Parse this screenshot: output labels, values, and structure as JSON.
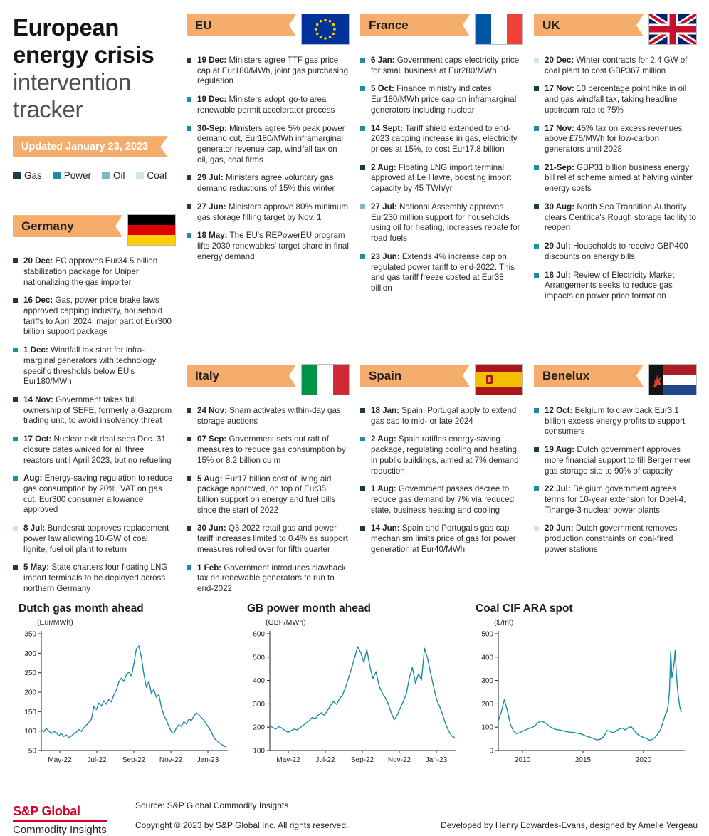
{
  "header": {
    "title_bold": "European energy crisis",
    "title_light": "intervention tracker",
    "updated": "Updated January 23, 2023",
    "legend": [
      {
        "cat": "gas",
        "label": "Gas"
      },
      {
        "cat": "power",
        "label": "Power"
      },
      {
        "cat": "oil",
        "label": "Oil"
      },
      {
        "cat": "coal",
        "label": "Coal"
      }
    ]
  },
  "colors": {
    "banner": "#F5AD6D",
    "line": "#1D8CA4",
    "categories": {
      "gas": "#1C3B4D",
      "power": "#1D8CA4",
      "oil": "#7FB6CC",
      "coal": "#CEE4EE"
    }
  },
  "sections": {
    "germany": {
      "title": "Germany",
      "flag": "germany",
      "items": [
        {
          "cat": "gas",
          "date": "20 Dec:",
          "text": "EC approves Eur34.5 billion stabilization package for Uniper nationalizing the gas importer"
        },
        {
          "cat": "gas",
          "date": "16 Dec:",
          "text": "Gas, power price brake laws approved capping industry, household tariffs to April 2024, major part of Eur300 billion support package"
        },
        {
          "cat": "power",
          "date": "1 Dec:",
          "text": "Windfall tax start for infra-marginal generators with technology specific thresholds below EU's Eur180/MWh"
        },
        {
          "cat": "gas",
          "date": "14 Nov:",
          "text": "Government takes full ownership of SEFE, formerly a Gazprom trading unit, to avoid insolvency threat"
        },
        {
          "cat": "power",
          "date": "17 Oct:",
          "text": "Nuclear exit deal sees Dec. 31 closure dates waived for all three reactors until April 2023, but no refueling"
        },
        {
          "cat": "power",
          "date": "Aug:",
          "text": "Energy-saving regulation to reduce gas consumption by 20%, VAT on gas cut, Eur300 consumer allowance approved"
        },
        {
          "cat": "coal",
          "date": "8 Jul:",
          "text": "Bundesrat approves replacement power law allowing 10-GW of coal, lignite, fuel oil plant to return"
        },
        {
          "cat": "gas",
          "date": "5 May:",
          "text": "State charters four floating LNG import terminals to be deployed across northern Germany"
        }
      ]
    },
    "eu": {
      "title": "EU",
      "flag": "eu",
      "items": [
        {
          "cat": "gas",
          "date": "19 Dec:",
          "text": "Ministers agree TTF gas price cap at Eur180/MWh, joint gas purchasing regulation"
        },
        {
          "cat": "power",
          "date": "19 Dec:",
          "text": "Ministers adopt 'go-to area' renewable permit accelerator process"
        },
        {
          "cat": "power",
          "date": "30-Sep:",
          "text": "Ministers agree 5% peak power demand cut, Eur180/MWh inframarginal generator revenue cap, windfall tax on oil, gas, coal firms"
        },
        {
          "cat": "gas",
          "date": "29 Jul:",
          "text": "Ministers agree voluntary gas demand reductions of 15% this winter"
        },
        {
          "cat": "gas",
          "date": "27 Jun:",
          "text": "Ministers approve 80% minimum gas storage filling target by Nov. 1"
        },
        {
          "cat": "power",
          "date": "18 May:",
          "text": "The EU's REPowerEU program lifts 2030 renewables' target share in final energy demand"
        }
      ]
    },
    "france": {
      "title": "France",
      "flag": "france",
      "items": [
        {
          "cat": "power",
          "date": "6 Jan:",
          "text": "Government caps electricity price for small business at Eur280/MWh"
        },
        {
          "cat": "power",
          "date": "5 Oct:",
          "text": "Finance ministry indicates Eur180/MWh price cap on inframarginal generators including nuclear"
        },
        {
          "cat": "power",
          "date": "14 Sept:",
          "text": "Tariff shield extended to end-2023 capping increase in gas, electricity prices at 15%, to cost Eur17.8 billion"
        },
        {
          "cat": "gas",
          "date": "2 Aug:",
          "text": "Floating LNG import terminal approved at Le Havre, boosting import capacity by 45 TWh/yr"
        },
        {
          "cat": "oil",
          "date": "27 Jul:",
          "text": "National Assembly approves Eur230 million support for households using oil for heating, increases rebate for road fuels"
        },
        {
          "cat": "power",
          "date": "23 Jun:",
          "text": "Extends 4% increase cap on regulated power tariff to end-2022. This and gas tariff freeze costed at Eur38 billion"
        }
      ]
    },
    "uk": {
      "title": "UK",
      "flag": "uk",
      "items": [
        {
          "cat": "coal",
          "date": "20 Dec:",
          "text": "Winter contracts for 2.4 GW of coal plant to cost GBP367 million"
        },
        {
          "cat": "gas",
          "date": "17 Nov:",
          "text": "10 percentage point hike in oil and gas windfall tax, taking headline upstream rate to 75%"
        },
        {
          "cat": "power",
          "date": "17 Nov:",
          "text": "45% tax on excess revenues above £75/MWh for low-carbon generators until 2028"
        },
        {
          "cat": "power",
          "date": "21-Sep:",
          "text": "GBP31 billion business energy bill relief scheme aimed at halving winter energy costs"
        },
        {
          "cat": "gas",
          "date": "30 Aug:",
          "text": "North Sea Transition Authority clears Centrica's Rough storage facility to reopen"
        },
        {
          "cat": "power",
          "date": "29 Jul:",
          "text": "Households to receive GBP400 discounts on energy bills"
        },
        {
          "cat": "power",
          "date": "18 Jul:",
          "text": "Review of Electricity Market Arrangements seeks to reduce gas impacts on power price formation"
        }
      ]
    },
    "italy": {
      "title": "Italy",
      "flag": "italy",
      "items": [
        {
          "cat": "gas",
          "date": "24 Nov:",
          "text": "Snam activates within-day gas storage auctions"
        },
        {
          "cat": "gas",
          "date": "07 Sep:",
          "text": "Government sets out raft of measures to reduce gas consumption by 15% or 8.2 billion cu m"
        },
        {
          "cat": "gas",
          "date": "5 Aug:",
          "text": "Eur17 billion cost of living aid package approved, on top of Eur35 billion support on energy and fuel bills since the start of 2022"
        },
        {
          "cat": "gas",
          "date": "30 Jun:",
          "text": "Q3 2022 retail gas and power tariff increases limited to 0.4% as support measures rolled over for fifth quarter"
        },
        {
          "cat": "power",
          "date": "1 Feb:",
          "text": "Government introduces clawback tax on renewable generators to run to end-2022"
        }
      ]
    },
    "spain": {
      "title": "Spain",
      "flag": "spain",
      "items": [
        {
          "cat": "gas",
          "date": "18 Jan:",
          "text": "Spain, Portugal apply to extend gas cap to mid- or late 2024"
        },
        {
          "cat": "power",
          "date": "2 Aug:",
          "text": "Spain ratifies energy-saving package, regulating cooling and heating in public buildings, aimed at 7% demand reduction"
        },
        {
          "cat": "gas",
          "date": "1 Aug:",
          "text": "Government passes decree to reduce gas demand by 7% via reduced state, business heating and cooling"
        },
        {
          "cat": "gas",
          "date": "14 Jun:",
          "text": "Spain and Portugal's gas cap mechanism limits price of gas for power generation at Eur40/MWh"
        }
      ]
    },
    "benelux": {
      "title": "Benelux",
      "flag": "benelux",
      "items": [
        {
          "cat": "power",
          "date": "12 Oct:",
          "text": "Belgium to claw back Eur3.1 billion excess energy profits to support consumers"
        },
        {
          "cat": "gas",
          "date": "19 Aug:",
          "text": "Dutch government approves more financial support to fill Bergermeer gas storage site to 90% of capacity"
        },
        {
          "cat": "power",
          "date": "22 Jul:",
          "text": "Belgium government agrees terms for 10-year extension for Doel-4, Tihange-3 nuclear power plants"
        },
        {
          "cat": "coal",
          "date": "20 Jun:",
          "text": "Dutch government removes production constraints on coal-fired power stations"
        }
      ]
    }
  },
  "chart_data": [
    {
      "id": "dutch-gas",
      "type": "line",
      "title": "Dutch gas month ahead",
      "unit": "(Eur/MWh)",
      "xlabel": "",
      "ylabel": "Eur/MWh",
      "ylim": [
        50,
        350
      ],
      "yticks": [
        50,
        100,
        150,
        200,
        250,
        300,
        350
      ],
      "xrange": [
        0,
        10
      ],
      "xticks": [
        {
          "v": 1,
          "label": "May-22"
        },
        {
          "v": 3,
          "label": "Jul-22"
        },
        {
          "v": 5,
          "label": "Sep-22"
        },
        {
          "v": 7,
          "label": "Nov-22"
        },
        {
          "v": 9,
          "label": "Jan-23"
        }
      ],
      "values": [
        103,
        98,
        107,
        100,
        94,
        99,
        96,
        88,
        94,
        86,
        90,
        83,
        87,
        93,
        97,
        104,
        99,
        108,
        115,
        122,
        130,
        163,
        155,
        172,
        164,
        178,
        169,
        182,
        175,
        193,
        205,
        226,
        236,
        227,
        244,
        252,
        241,
        272,
        311,
        319,
        291,
        246,
        212,
        228,
        197,
        207,
        187,
        194,
        162,
        141,
        128,
        112,
        98,
        94,
        108,
        116,
        112,
        124,
        118,
        131,
        127,
        138,
        147,
        142,
        135,
        128,
        118,
        108,
        98,
        83,
        76,
        71,
        66,
        62,
        58
      ]
    },
    {
      "id": "gb-power",
      "type": "line",
      "title": "GB power month ahead",
      "unit": "(GBP/MWh)",
      "xlabel": "",
      "ylabel": "GBP/MWh",
      "ylim": [
        100,
        600
      ],
      "yticks": [
        100,
        200,
        300,
        400,
        500,
        600
      ],
      "xrange": [
        0,
        10
      ],
      "xticks": [
        {
          "v": 1,
          "label": "May-22"
        },
        {
          "v": 3,
          "label": "Jul-22"
        },
        {
          "v": 5,
          "label": "Sep-22"
        },
        {
          "v": 7,
          "label": "Nov-22"
        },
        {
          "v": 9,
          "label": "Jan-23"
        }
      ],
      "values": [
        208,
        198,
        192,
        202,
        196,
        186,
        178,
        184,
        192,
        188,
        198,
        208,
        218,
        228,
        242,
        236,
        252,
        262,
        250,
        272,
        292,
        310,
        298,
        322,
        338,
        372,
        412,
        455,
        500,
        545,
        518,
        478,
        532,
        458,
        408,
        438,
        378,
        348,
        328,
        302,
        262,
        232,
        252,
        282,
        310,
        342,
        412,
        456,
        388,
        428,
        402,
        538,
        496,
        432,
        372,
        318,
        288,
        252,
        212,
        182,
        162,
        155
      ]
    },
    {
      "id": "coal-ara",
      "type": "line",
      "title": "Coal CIF ARA spot",
      "unit": "($/mt)",
      "xlabel": "",
      "ylabel": "$/mt",
      "ylim": [
        0,
        500
      ],
      "yticks": [
        0,
        100,
        200,
        300,
        400,
        500
      ],
      "xrange": [
        2008,
        2023.3
      ],
      "xticks": [
        {
          "v": 2010,
          "label": "2010"
        },
        {
          "v": 2015,
          "label": "2015"
        },
        {
          "v": 2020,
          "label": "2020"
        }
      ],
      "x": [
        2008.0,
        2008.25,
        2008.5,
        2008.75,
        2009.0,
        2009.25,
        2009.5,
        2009.75,
        2010.0,
        2010.25,
        2010.5,
        2010.75,
        2011.0,
        2011.25,
        2011.5,
        2011.75,
        2012.0,
        2012.25,
        2012.5,
        2012.75,
        2013.0,
        2013.25,
        2013.5,
        2013.75,
        2014.0,
        2014.25,
        2014.5,
        2014.75,
        2015.0,
        2015.25,
        2015.5,
        2015.75,
        2016.0,
        2016.25,
        2016.5,
        2016.75,
        2017.0,
        2017.25,
        2017.5,
        2017.75,
        2018.0,
        2018.25,
        2018.5,
        2018.75,
        2019.0,
        2019.25,
        2019.5,
        2019.75,
        2020.0,
        2020.25,
        2020.5,
        2020.75,
        2021.0,
        2021.2,
        2021.4,
        2021.6,
        2021.8,
        2021.95,
        2022.05,
        2022.15,
        2022.25,
        2022.35,
        2022.45,
        2022.55,
        2022.62,
        2022.7,
        2022.8,
        2022.9,
        2023.0,
        2023.08,
        2023.15
      ],
      "values": [
        128,
        165,
        218,
        172,
        112,
        84,
        72,
        76,
        82,
        88,
        94,
        98,
        104,
        118,
        126,
        122,
        114,
        102,
        96,
        90,
        88,
        86,
        82,
        80,
        78,
        78,
        74,
        72,
        68,
        62,
        58,
        54,
        48,
        46,
        50,
        62,
        86,
        82,
        76,
        84,
        92,
        96,
        88,
        98,
        102,
        84,
        70,
        62,
        56,
        52,
        44,
        48,
        58,
        72,
        88,
        118,
        152,
        168,
        198,
        258,
        425,
        312,
        342,
        385,
        428,
        348,
        272,
        228,
        188,
        172,
        165
      ]
    }
  ],
  "footer": {
    "source": "Source: S&P Global Commodity Insights",
    "copyright": "Copyright © 2023 by S&P Global Inc. All rights reserved.",
    "credits": "Developed by Henry Edwardes-Evans, designed by Amelie Yergeau",
    "logo_top": "S&P Global",
    "logo_bottom": "Commodity Insights"
  }
}
